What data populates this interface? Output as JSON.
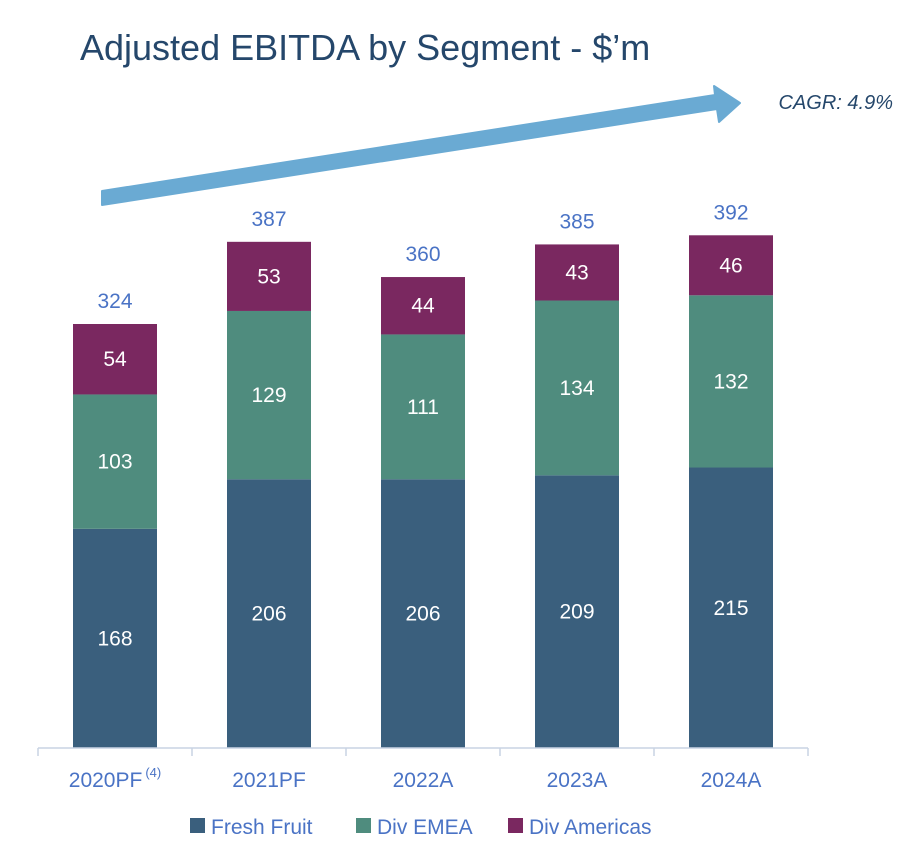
{
  "chart_data": {
    "type": "bar",
    "stacked": true,
    "title": "Adjusted EBITDA by Segment - $’m",
    "annotation": "CAGR: 4.9%",
    "categories": [
      "2020PF",
      "2021PF",
      "2022A",
      "2023A",
      "2024A"
    ],
    "category_superscripts": [
      "(4)",
      "",
      "",
      "",
      ""
    ],
    "series": [
      {
        "name": "Fresh Fruit",
        "color": "#3a5f7d",
        "values": [
          168,
          206,
          206,
          209,
          215
        ]
      },
      {
        "name": "Div EMEA",
        "color": "#4f8c7e",
        "values": [
          103,
          129,
          111,
          134,
          132
        ]
      },
      {
        "name": "Div Americas",
        "color": "#7a2860",
        "values": [
          54,
          53,
          44,
          43,
          46
        ]
      }
    ],
    "totals": [
      324,
      387,
      360,
      385,
      392
    ],
    "ylim": [
      0,
      400
    ],
    "legend_position": "bottom",
    "xlabel": "",
    "ylabel": ""
  },
  "colors": {
    "title": "#25476b",
    "label_blue": "#4a73c5",
    "arrow": "#6aaad3",
    "axis": "#c9d3e3"
  }
}
